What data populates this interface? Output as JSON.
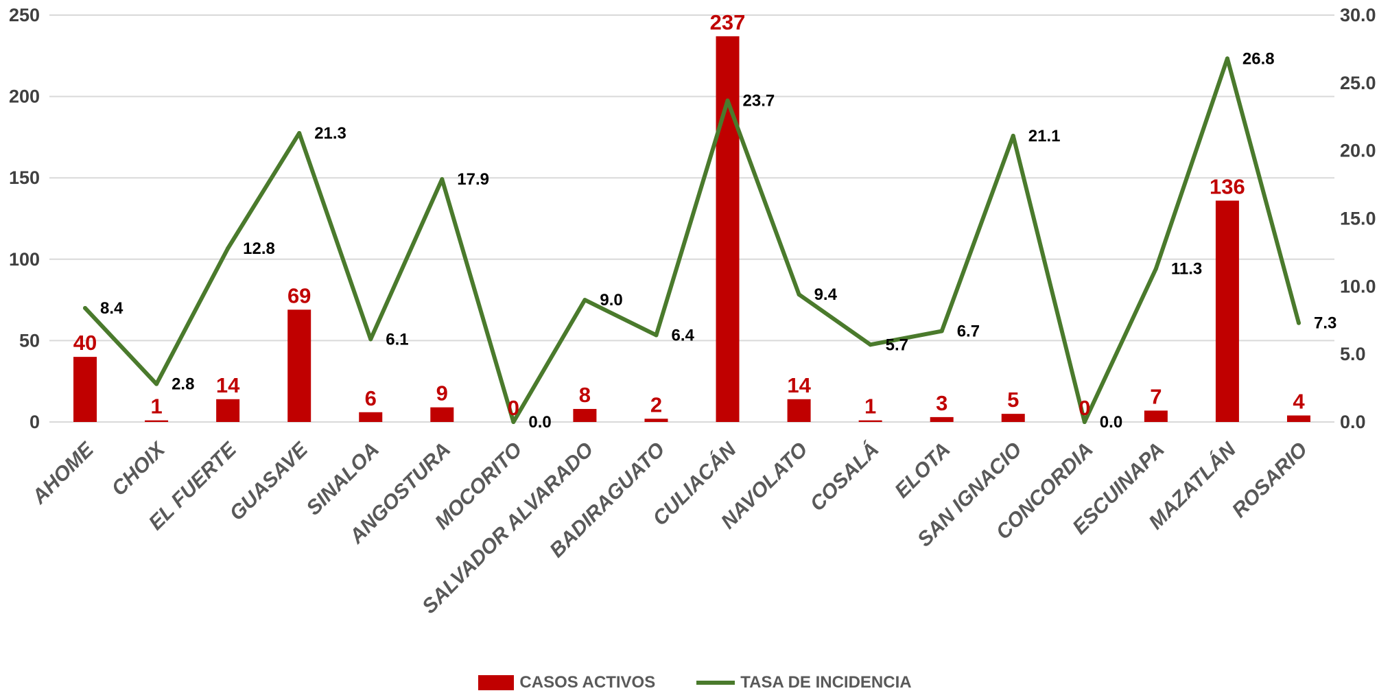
{
  "chart_data": {
    "type": "bar",
    "categories": [
      "AHOME",
      "CHOIX",
      "EL FUERTE",
      "GUASAVE",
      "SINALOA",
      "ANGOSTURA",
      "MOCORITO",
      "SALVADOR ALVARADO",
      "BADIRAGUATO",
      "CULIACÁN",
      "NAVOLATO",
      "COSALÁ",
      "ELOTA",
      "SAN IGNACIO",
      "CONCORDIA",
      "ESCUINAPA",
      "MAZATLÁN",
      "ROSARIO"
    ],
    "series": [
      {
        "name": "CASOS ACTIVOS",
        "type": "bar",
        "axis": "left",
        "color": "#c00000",
        "values": [
          40,
          1,
          14,
          69,
          6,
          9,
          0,
          8,
          2,
          237,
          14,
          1,
          3,
          5,
          0,
          7,
          136,
          4
        ],
        "labels": [
          "40",
          "1",
          "14",
          "69",
          "6",
          "9",
          "0",
          "8",
          "2",
          "237",
          "14",
          "1",
          "3",
          "5",
          "0",
          "7",
          "136",
          "4"
        ]
      },
      {
        "name": "TASA DE INCIDENCIA",
        "type": "line",
        "axis": "right",
        "color": "#4a7a2c",
        "values": [
          8.4,
          2.8,
          12.8,
          21.3,
          6.1,
          17.9,
          0.0,
          9.0,
          6.4,
          23.7,
          9.4,
          5.7,
          6.7,
          21.1,
          0.0,
          11.3,
          26.8,
          7.3
        ],
        "labels": [
          "8.4",
          "2.8",
          "12.8",
          "21.3",
          "6.1",
          "17.9",
          "0.0",
          "9.0",
          "6.4",
          "23.7",
          "9.4",
          "5.7",
          "6.7",
          "21.1",
          "0.0",
          "11.3",
          "26.8",
          "7.3"
        ]
      }
    ],
    "y_left": {
      "range": [
        0,
        250
      ],
      "ticks": [
        "0",
        "50",
        "100",
        "150",
        "200",
        "250"
      ]
    },
    "y_right": {
      "range": [
        0,
        30
      ],
      "ticks": [
        "0.0",
        "5.0",
        "10.0",
        "15.0",
        "20.0",
        "25.0",
        "30.0"
      ]
    },
    "grid": true,
    "legend_position": "bottom"
  },
  "legend": {
    "bar_label": "CASOS ACTIVOS",
    "line_label": "TASA DE INCIDENCIA"
  }
}
